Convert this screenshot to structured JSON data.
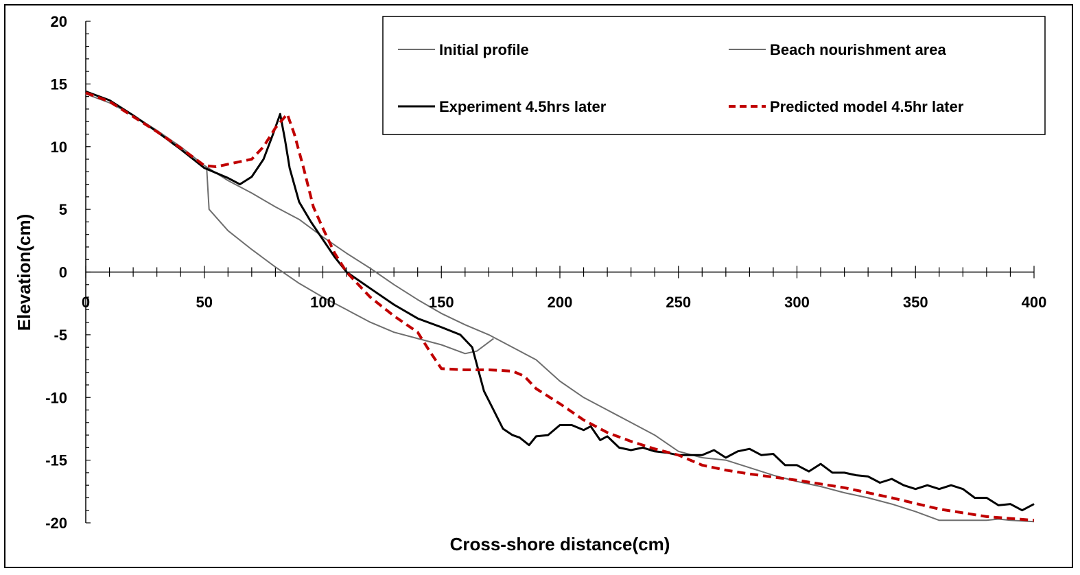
{
  "chart_data": {
    "type": "line",
    "xlabel": "Cross-shore distance(cm)",
    "ylabel": "Elevation(cm)",
    "xlim": [
      0,
      400
    ],
    "ylim": [
      -20,
      20
    ],
    "x_ticks": [
      "0",
      "50",
      "100",
      "150",
      "200",
      "250",
      "300",
      "350",
      "400"
    ],
    "y_ticks": [
      "20",
      "15",
      "10",
      "5",
      "0",
      "-5",
      "-10",
      "-15",
      "-20"
    ],
    "grid": false,
    "legend_position": "top-right",
    "series": [
      {
        "name": "Initial profile",
        "color": "#6e6e6e",
        "style": "solid",
        "points": [
          [
            0,
            14.2
          ],
          [
            10,
            13.5
          ],
          [
            20,
            12.5
          ],
          [
            30,
            11.3
          ],
          [
            40,
            10
          ],
          [
            50,
            8.5
          ],
          [
            60,
            7.3
          ],
          [
            70,
            6.3
          ],
          [
            80,
            5.2
          ],
          [
            90,
            4.2
          ],
          [
            100,
            2.8
          ],
          [
            110,
            1.5
          ],
          [
            120,
            0.3
          ],
          [
            130,
            -1
          ],
          [
            140,
            -2.2
          ],
          [
            150,
            -3.3
          ],
          [
            160,
            -4.2
          ],
          [
            170,
            -5
          ],
          [
            180,
            -6
          ],
          [
            190,
            -7
          ],
          [
            200,
            -8.7
          ],
          [
            210,
            -10
          ],
          [
            220,
            -11
          ],
          [
            230,
            -12
          ],
          [
            240,
            -13
          ],
          [
            250,
            -14.3
          ],
          [
            260,
            -14.8
          ],
          [
            270,
            -15
          ],
          [
            280,
            -15.6
          ],
          [
            290,
            -16.2
          ],
          [
            300,
            -16.7
          ],
          [
            310,
            -17.1
          ],
          [
            320,
            -17.6
          ],
          [
            330,
            -18
          ],
          [
            340,
            -18.5
          ],
          [
            350,
            -19.1
          ],
          [
            360,
            -19.8
          ],
          [
            370,
            -19.8
          ],
          [
            380,
            -19.8
          ],
          [
            385,
            -19.7
          ],
          [
            390,
            -19.8
          ],
          [
            400,
            -19.9
          ]
        ]
      },
      {
        "name": "Beach nourishment area",
        "color": "#6e6e6e",
        "style": "solid",
        "points": [
          [
            51,
            8.3
          ],
          [
            52,
            5
          ],
          [
            60,
            3.3
          ],
          [
            70,
            1.8
          ],
          [
            80,
            0.4
          ],
          [
            90,
            -0.9
          ],
          [
            100,
            -2
          ],
          [
            110,
            -3
          ],
          [
            120,
            -4
          ],
          [
            130,
            -4.8
          ],
          [
            140,
            -5.3
          ],
          [
            150,
            -5.8
          ],
          [
            160,
            -6.5
          ],
          [
            165,
            -6.3
          ],
          [
            172,
            -5.3
          ]
        ]
      },
      {
        "name": "Experiment 4.5hrs later",
        "color": "#000000",
        "style": "solid",
        "points": [
          [
            0,
            14.4
          ],
          [
            10,
            13.7
          ],
          [
            20,
            12.5
          ],
          [
            30,
            11.2
          ],
          [
            40,
            9.8
          ],
          [
            50,
            8.3
          ],
          [
            60,
            7.5
          ],
          [
            65,
            7
          ],
          [
            70,
            7.6
          ],
          [
            75,
            9
          ],
          [
            79,
            11
          ],
          [
            82,
            12.6
          ],
          [
            84,
            10.6
          ],
          [
            86,
            8.3
          ],
          [
            90,
            5.6
          ],
          [
            95,
            4
          ],
          [
            100,
            2.6
          ],
          [
            105,
            1.2
          ],
          [
            110,
            0
          ],
          [
            120,
            -1.3
          ],
          [
            130,
            -2.6
          ],
          [
            140,
            -3.7
          ],
          [
            150,
            -4.4
          ],
          [
            158,
            -5
          ],
          [
            163,
            -6
          ],
          [
            168,
            -9.5
          ],
          [
            172,
            -11
          ],
          [
            176,
            -12.5
          ],
          [
            180,
            -13
          ],
          [
            183,
            -13.2
          ],
          [
            187,
            -13.8
          ],
          [
            190,
            -13.1
          ],
          [
            195,
            -13
          ],
          [
            200,
            -12.2
          ],
          [
            205,
            -12.2
          ],
          [
            210,
            -12.6
          ],
          [
            213,
            -12.3
          ],
          [
            217,
            -13.4
          ],
          [
            220,
            -13.1
          ],
          [
            225,
            -14
          ],
          [
            230,
            -14.2
          ],
          [
            235,
            -14
          ],
          [
            240,
            -14.3
          ],
          [
            245,
            -14.4
          ],
          [
            250,
            -14.6
          ],
          [
            260,
            -14.6
          ],
          [
            265,
            -14.2
          ],
          [
            270,
            -14.8
          ],
          [
            275,
            -14.3
          ],
          [
            280,
            -14.1
          ],
          [
            285,
            -14.6
          ],
          [
            290,
            -14.5
          ],
          [
            295,
            -15.4
          ],
          [
            300,
            -15.4
          ],
          [
            305,
            -15.9
          ],
          [
            310,
            -15.3
          ],
          [
            315,
            -16
          ],
          [
            320,
            -16
          ],
          [
            325,
            -16.2
          ],
          [
            330,
            -16.3
          ],
          [
            335,
            -16.8
          ],
          [
            340,
            -16.5
          ],
          [
            345,
            -17
          ],
          [
            350,
            -17.3
          ],
          [
            355,
            -17
          ],
          [
            360,
            -17.3
          ],
          [
            365,
            -17
          ],
          [
            370,
            -17.3
          ],
          [
            375,
            -18
          ],
          [
            380,
            -18
          ],
          [
            385,
            -18.6
          ],
          [
            390,
            -18.5
          ],
          [
            395,
            -19
          ],
          [
            400,
            -18.5
          ]
        ]
      },
      {
        "name": "Predicted model 4.5hr later",
        "color": "#c00000",
        "style": "dashed",
        "points": [
          [
            0,
            14.3
          ],
          [
            10,
            13.6
          ],
          [
            20,
            12.4
          ],
          [
            30,
            11.2
          ],
          [
            40,
            9.9
          ],
          [
            50,
            8.5
          ],
          [
            55,
            8.4
          ],
          [
            60,
            8.6
          ],
          [
            70,
            9
          ],
          [
            75,
            10
          ],
          [
            80,
            11.5
          ],
          [
            85,
            12.6
          ],
          [
            88,
            11
          ],
          [
            92,
            8.2
          ],
          [
            96,
            5.2
          ],
          [
            100,
            3.5
          ],
          [
            105,
            1.5
          ],
          [
            110,
            0
          ],
          [
            115,
            -1
          ],
          [
            120,
            -2
          ],
          [
            130,
            -3.5
          ],
          [
            140,
            -4.8
          ],
          [
            145,
            -6.3
          ],
          [
            150,
            -7.7
          ],
          [
            160,
            -7.8
          ],
          [
            170,
            -7.8
          ],
          [
            180,
            -7.9
          ],
          [
            185,
            -8.3
          ],
          [
            190,
            -9.3
          ],
          [
            200,
            -10.5
          ],
          [
            210,
            -11.8
          ],
          [
            220,
            -12.8
          ],
          [
            230,
            -13.5
          ],
          [
            240,
            -14.1
          ],
          [
            250,
            -14.6
          ],
          [
            260,
            -15.4
          ],
          [
            270,
            -15.8
          ],
          [
            280,
            -16.1
          ],
          [
            300,
            -16.6
          ],
          [
            320,
            -17.2
          ],
          [
            340,
            -18
          ],
          [
            360,
            -18.9
          ],
          [
            380,
            -19.5
          ],
          [
            400,
            -19.8
          ]
        ]
      }
    ]
  }
}
